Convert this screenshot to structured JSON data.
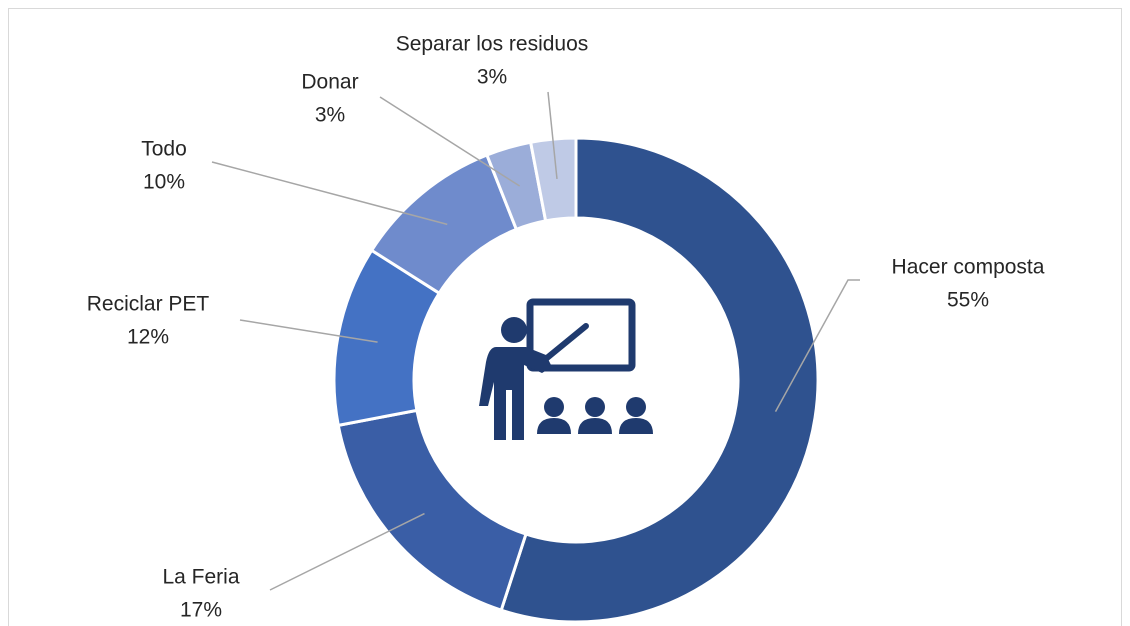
{
  "chart_data": {
    "type": "donut",
    "categories": [
      "Hacer composta",
      "La Feria",
      "Reciclar PET",
      "Todo",
      "Donar",
      "Separar los residuos"
    ],
    "values": [
      55,
      17,
      12,
      10,
      3,
      3
    ],
    "value_labels": [
      "55%",
      "17%",
      "12%",
      "10%",
      "3%",
      "3%"
    ],
    "colors": [
      "#2f528f",
      "#3a5ea6",
      "#4472c4",
      "#6f8bcc",
      "#9badd9",
      "#bfcae6"
    ]
  }
}
